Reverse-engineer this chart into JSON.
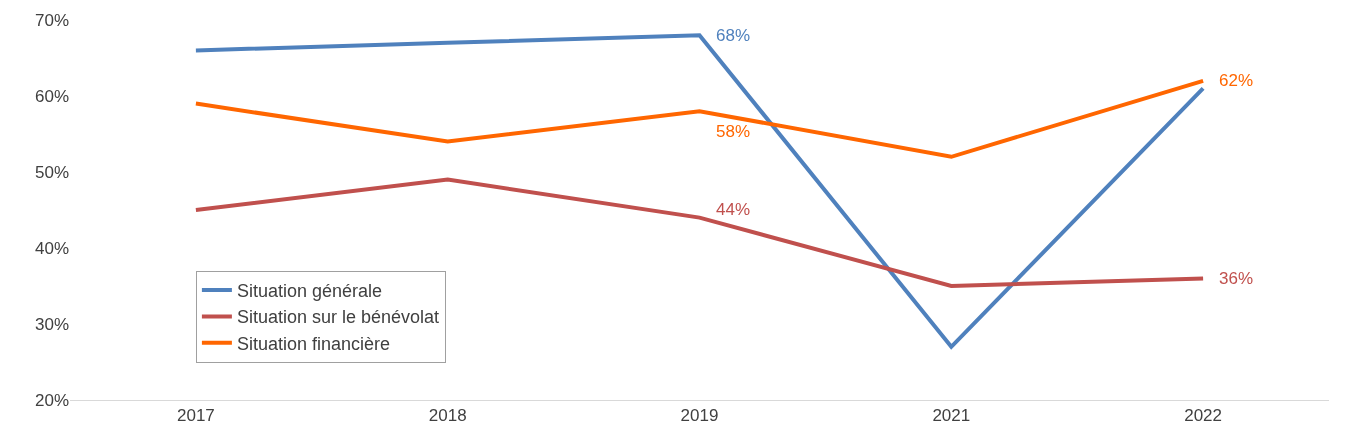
{
  "chart_data": {
    "type": "line",
    "categories": [
      "2017",
      "2018",
      "2019",
      "2021",
      "2022"
    ],
    "series": [
      {
        "name": "Situation générale",
        "color": "#4f81bd",
        "values": [
          66,
          67,
          68,
          27,
          61
        ],
        "value_labels": [
          null,
          null,
          "68%",
          null,
          null
        ]
      },
      {
        "name": "Situation sur le bénévolat",
        "color": "#c0504d",
        "values": [
          45,
          49,
          44,
          35,
          36
        ],
        "value_labels": [
          null,
          null,
          "44%",
          null,
          "36%"
        ]
      },
      {
        "name": "Situation financière",
        "color": "#ff6600",
        "values": [
          59,
          54,
          58,
          52,
          62
        ],
        "value_labels": [
          null,
          null,
          "58%",
          null,
          "62%"
        ]
      }
    ],
    "ylim": [
      20,
      70
    ],
    "yticks": [
      {
        "value": 20,
        "label": "20%"
      },
      {
        "value": 30,
        "label": "30%"
      },
      {
        "value": 40,
        "label": "40%"
      },
      {
        "value": 50,
        "label": "50%"
      },
      {
        "value": 60,
        "label": "60%"
      },
      {
        "value": 70,
        "label": "70%"
      }
    ],
    "grid": false,
    "legend": "bottom left",
    "marker": "none",
    "line_style": "solid"
  }
}
